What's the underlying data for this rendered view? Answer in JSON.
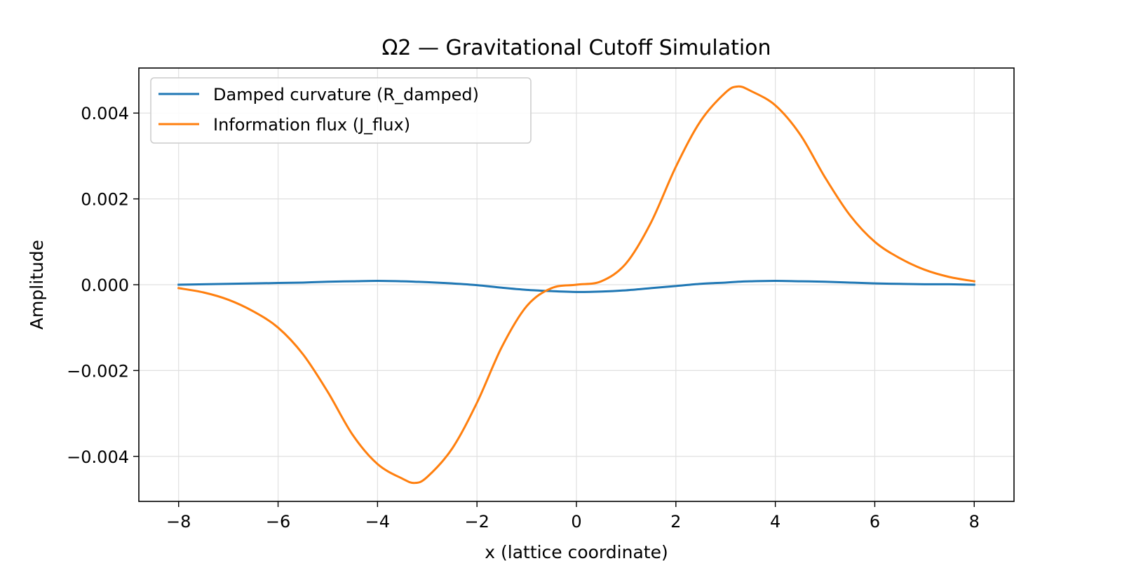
{
  "chart_data": {
    "type": "line",
    "title": "Ω2 — Gravitational Cutoff Simulation",
    "xlabel": "x (lattice coordinate)",
    "ylabel": "Amplitude",
    "xlim": [
      -8.8,
      8.8
    ],
    "ylim": [
      -0.00505,
      0.00505
    ],
    "x_ticks": [
      -8,
      -6,
      -4,
      -2,
      0,
      2,
      4,
      6,
      8
    ],
    "x_tick_labels": [
      "−8",
      "−6",
      "−4",
      "−2",
      "0",
      "2",
      "4",
      "6",
      "8"
    ],
    "y_ticks": [
      -0.004,
      -0.002,
      0.0,
      0.002,
      0.004
    ],
    "y_tick_labels": [
      "−0.004",
      "−0.002",
      "0.000",
      "0.002",
      "0.004"
    ],
    "grid": true,
    "legend_position": "upper-left",
    "x": [
      -8,
      -7.5,
      -7,
      -6.5,
      -6,
      -5.5,
      -5,
      -4.5,
      -4,
      -3.5,
      -3.25,
      -3,
      -2.5,
      -2,
      -1.5,
      -1,
      -0.5,
      0,
      0.5,
      1,
      1.5,
      2,
      2.5,
      3,
      3.25,
      3.5,
      4,
      4.5,
      5,
      5.5,
      6,
      6.5,
      7,
      7.5,
      8
    ],
    "series": [
      {
        "name": "Damped curvature (R_damped)",
        "color": "#1f77b4",
        "values": [
          0.0,
          1e-05,
          2e-05,
          3e-05,
          4e-05,
          5e-05,
          7e-05,
          8e-05,
          9e-05,
          8e-05,
          7e-05,
          6e-05,
          3e-05,
          -1e-05,
          -7e-05,
          -0.00012,
          -0.00015,
          -0.00017,
          -0.00016,
          -0.00013,
          -8e-05,
          -3e-05,
          2e-05,
          5e-05,
          7e-05,
          8e-05,
          9e-05,
          8e-05,
          7e-05,
          5e-05,
          3e-05,
          2e-05,
          1e-05,
          1e-05,
          0.0
        ]
      },
      {
        "name": "Information flux (J_flux)",
        "color": "#ff7f0e",
        "values": [
          -8e-05,
          -0.00018,
          -0.00035,
          -0.00062,
          -0.001,
          -0.00162,
          -0.0025,
          -0.0035,
          -0.00418,
          -0.00452,
          -0.00462,
          -0.00448,
          -0.00382,
          -0.00275,
          -0.00145,
          -0.0005,
          -8e-05,
          0.0,
          8e-05,
          0.0005,
          0.00145,
          0.00275,
          0.00382,
          0.00448,
          0.00462,
          0.00452,
          0.00418,
          0.0035,
          0.0025,
          0.00162,
          0.001,
          0.00062,
          0.00035,
          0.00018,
          8e-05
        ]
      }
    ]
  }
}
